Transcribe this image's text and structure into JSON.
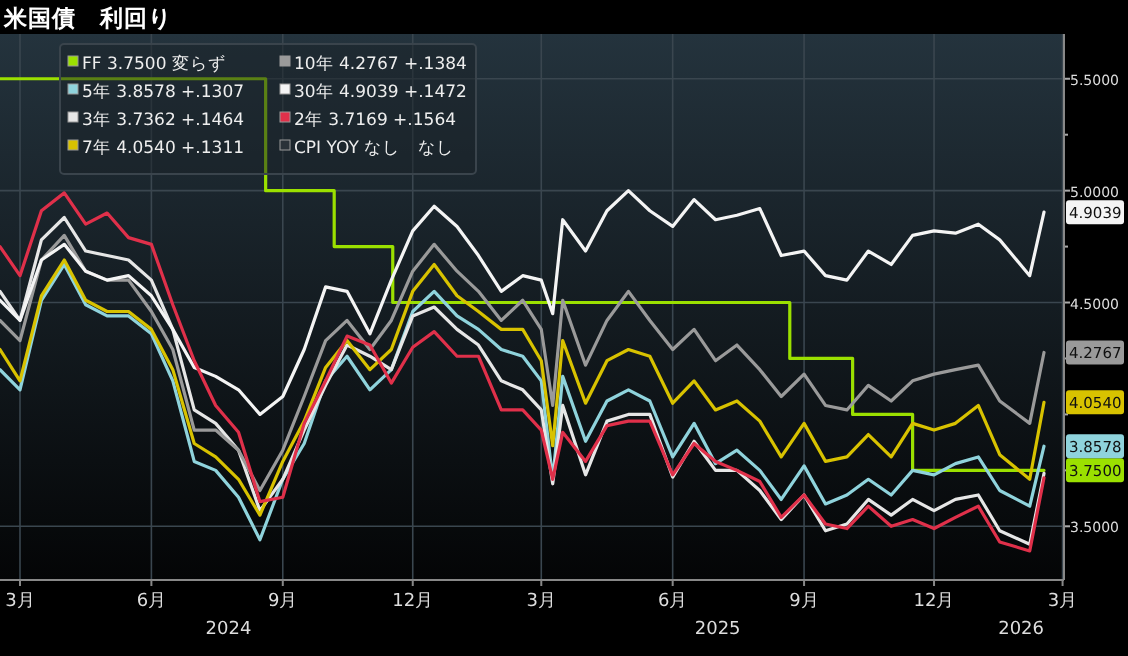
{
  "chart_data": {
    "type": "line",
    "title": "米国債　利回り",
    "x": [
      "2024-02-16",
      "2024-03-01",
      "2024-03-16",
      "2024-04-01",
      "2024-04-16",
      "2024-05-01",
      "2024-05-16",
      "2024-06-01",
      "2024-06-16",
      "2024-07-01",
      "2024-07-16",
      "2024-08-01",
      "2024-08-16",
      "2024-09-01",
      "2024-09-16",
      "2024-10-01",
      "2024-10-16",
      "2024-11-01",
      "2024-11-16",
      "2024-12-01",
      "2024-12-16",
      "2025-01-01",
      "2025-01-16",
      "2025-02-01",
      "2025-02-16",
      "2025-03-01",
      "2025-03-09",
      "2025-03-16",
      "2025-04-01",
      "2025-04-16",
      "2025-05-01",
      "2025-05-16",
      "2025-06-01",
      "2025-06-16",
      "2025-07-01",
      "2025-07-16",
      "2025-08-01",
      "2025-08-16",
      "2025-09-01",
      "2025-09-16",
      "2025-10-01",
      "2025-10-16",
      "2025-11-01",
      "2025-11-16",
      "2025-12-01",
      "2025-12-16",
      "2026-01-01",
      "2026-01-16",
      "2026-02-06",
      "2026-02-16"
    ],
    "series": [
      {
        "name": "FF 3.7500 変らず",
        "color": "#9be000",
        "type": "step",
        "x": [
          "2024-02-16",
          "2024-08-20",
          "2024-10-07",
          "2024-11-17",
          "2025-08-22",
          "2025-10-05",
          "2025-11-16",
          "2026-02-16"
        ],
        "values": [
          5.5,
          5.0,
          4.75,
          4.5,
          4.25,
          4.0,
          3.75,
          3.75
        ],
        "value_labels": [
          null,
          null,
          null,
          null,
          null,
          null,
          null,
          "3.7500"
        ]
      },
      {
        "name": "5年 3.8578 +.1307",
        "color": "#8fd3dc",
        "values": [
          4.2,
          4.11,
          4.51,
          4.67,
          4.49,
          4.44,
          4.44,
          4.36,
          4.15,
          3.79,
          3.75,
          3.63,
          3.44,
          3.71,
          3.87,
          4.15,
          4.26,
          4.11,
          4.2,
          4.46,
          4.55,
          4.44,
          4.38,
          4.29,
          4.26,
          4.15,
          3.71,
          4.17,
          3.88,
          4.06,
          4.11,
          4.06,
          3.81,
          3.96,
          3.78,
          3.84,
          3.75,
          3.62,
          3.77,
          3.6,
          3.64,
          3.71,
          3.64,
          3.75,
          3.73,
          3.78,
          3.81,
          3.66,
          3.59,
          3.8578
        ],
        "value_labels": [
          null,
          null,
          null,
          null,
          null,
          null,
          null,
          null,
          null,
          null,
          null,
          null,
          null,
          null,
          null,
          null,
          null,
          null,
          null,
          null,
          null,
          null,
          null,
          null,
          null,
          null,
          null,
          null,
          null,
          null,
          null,
          null,
          null,
          null,
          null,
          null,
          null,
          null,
          null,
          null,
          null,
          null,
          null,
          null,
          null,
          null,
          null,
          null,
          null,
          "3.8578"
        ]
      },
      {
        "name": "3年 3.7362 +.1464",
        "color": "#e6e6e6",
        "values": [
          4.55,
          4.42,
          4.78,
          4.88,
          4.73,
          4.71,
          4.69,
          4.6,
          4.38,
          4.02,
          3.96,
          3.84,
          3.57,
          3.71,
          3.93,
          4.13,
          4.31,
          4.26,
          4.2,
          4.44,
          4.48,
          4.38,
          4.31,
          4.15,
          4.11,
          4.02,
          3.69,
          4.04,
          3.73,
          3.97,
          4.0,
          4.0,
          3.72,
          3.88,
          3.75,
          3.75,
          3.66,
          3.53,
          3.64,
          3.48,
          3.51,
          3.62,
          3.55,
          3.62,
          3.57,
          3.62,
          3.64,
          3.48,
          3.42,
          3.7362
        ]
      },
      {
        "name": "7年 4.0540 +.1311",
        "color": "#d8c200",
        "values": [
          4.29,
          4.15,
          4.53,
          4.69,
          4.51,
          4.46,
          4.46,
          4.38,
          4.2,
          3.87,
          3.81,
          3.71,
          3.55,
          3.79,
          3.97,
          4.21,
          4.33,
          4.2,
          4.29,
          4.55,
          4.67,
          4.53,
          4.46,
          4.38,
          4.38,
          4.24,
          3.86,
          4.33,
          4.05,
          4.24,
          4.29,
          4.26,
          4.05,
          4.15,
          4.02,
          4.06,
          3.97,
          3.81,
          3.96,
          3.79,
          3.81,
          3.91,
          3.81,
          3.96,
          3.93,
          3.96,
          4.04,
          3.82,
          3.71,
          4.054
        ],
        "value_labels": [
          null,
          null,
          null,
          null,
          null,
          null,
          null,
          null,
          null,
          null,
          null,
          null,
          null,
          null,
          null,
          null,
          null,
          null,
          null,
          null,
          null,
          null,
          null,
          null,
          null,
          null,
          null,
          null,
          null,
          null,
          null,
          null,
          null,
          null,
          null,
          null,
          null,
          null,
          null,
          null,
          null,
          null,
          null,
          null,
          null,
          null,
          null,
          null,
          null,
          "4.0540"
        ]
      },
      {
        "name": "10年 4.2767 +.1384",
        "color": "#9a9a9a",
        "values": [
          4.42,
          4.33,
          4.69,
          4.8,
          4.64,
          4.6,
          4.6,
          4.46,
          4.29,
          3.93,
          3.93,
          3.84,
          3.66,
          3.84,
          4.08,
          4.33,
          4.42,
          4.29,
          4.42,
          4.64,
          4.76,
          4.64,
          4.55,
          4.42,
          4.51,
          4.38,
          4.04,
          4.51,
          4.22,
          4.42,
          4.55,
          4.42,
          4.29,
          4.38,
          4.24,
          4.31,
          4.2,
          4.08,
          4.18,
          4.04,
          4.02,
          4.13,
          4.06,
          4.15,
          4.18,
          4.2,
          4.22,
          4.06,
          3.96,
          4.2767
        ],
        "value_labels": [
          null,
          null,
          null,
          null,
          null,
          null,
          null,
          null,
          null,
          null,
          null,
          null,
          null,
          null,
          null,
          null,
          null,
          null,
          null,
          null,
          null,
          null,
          null,
          null,
          null,
          null,
          null,
          null,
          null,
          null,
          null,
          null,
          null,
          null,
          null,
          null,
          null,
          null,
          null,
          null,
          null,
          null,
          null,
          null,
          null,
          null,
          null,
          null,
          null,
          "4.2767"
        ]
      },
      {
        "name": "30年 4.9039 +.1472",
        "color": "#f4f4f4",
        "values": [
          4.51,
          4.42,
          4.69,
          4.76,
          4.64,
          4.6,
          4.62,
          4.53,
          4.38,
          4.21,
          4.17,
          4.11,
          4.0,
          4.08,
          4.29,
          4.57,
          4.55,
          4.36,
          4.6,
          4.82,
          4.93,
          4.84,
          4.71,
          4.55,
          4.62,
          4.6,
          4.45,
          4.87,
          4.73,
          4.91,
          5.0,
          4.91,
          4.84,
          4.96,
          4.87,
          4.89,
          4.92,
          4.71,
          4.73,
          4.62,
          4.6,
          4.73,
          4.67,
          4.8,
          4.82,
          4.81,
          4.85,
          4.78,
          4.62,
          4.9039
        ],
        "value_labels": [
          null,
          null,
          null,
          null,
          null,
          null,
          null,
          null,
          null,
          null,
          null,
          null,
          null,
          null,
          null,
          null,
          null,
          null,
          null,
          null,
          null,
          null,
          null,
          null,
          null,
          null,
          null,
          null,
          null,
          null,
          null,
          null,
          null,
          null,
          null,
          null,
          null,
          null,
          null,
          null,
          null,
          null,
          null,
          null,
          null,
          null,
          null,
          null,
          null,
          "4.9039"
        ]
      },
      {
        "name": "2年 3.7169 +.1564",
        "color": "#e0304a",
        "values": [
          4.75,
          4.62,
          4.91,
          4.99,
          4.85,
          4.9,
          4.79,
          4.76,
          4.49,
          4.24,
          4.04,
          3.92,
          3.61,
          3.63,
          3.96,
          4.15,
          4.35,
          4.31,
          4.14,
          4.3,
          4.37,
          4.26,
          4.26,
          4.02,
          4.02,
          3.93,
          3.71,
          3.92,
          3.79,
          3.95,
          3.97,
          3.97,
          3.73,
          3.87,
          3.79,
          3.75,
          3.7,
          3.54,
          3.64,
          3.51,
          3.49,
          3.59,
          3.5,
          3.53,
          3.49,
          3.54,
          3.59,
          3.43,
          3.39,
          3.7169
        ]
      },
      {
        "name": "CPI YOY なし　なし",
        "color": "#2a3138",
        "values": [
          null,
          null,
          null,
          null,
          null,
          null,
          null,
          null,
          null,
          null,
          null,
          null,
          null,
          null,
          null,
          null,
          null,
          null,
          null,
          null,
          null,
          null,
          null,
          null,
          null,
          null,
          null,
          null,
          null,
          null,
          null,
          null,
          null,
          null,
          null,
          null,
          null,
          null,
          null,
          null,
          null,
          null,
          null,
          null,
          null,
          null,
          null,
          null,
          null,
          null
        ]
      }
    ],
    "xlim": [
      "2024-02-16",
      "2026-03-02"
    ],
    "xticks": [
      {
        "value": "2024-03-01",
        "label": "3月"
      },
      {
        "value": "2024-06-01",
        "label": "6月"
      },
      {
        "value": "2024-09-01",
        "label": "9月"
      },
      {
        "value": "2024-12-01",
        "label": "12月"
      },
      {
        "value": "2025-03-01",
        "label": "3月"
      },
      {
        "value": "2025-06-01",
        "label": "6月"
      },
      {
        "value": "2025-09-01",
        "label": "9月"
      },
      {
        "value": "2025-12-01",
        "label": "12月"
      },
      {
        "value": "2026-03-01",
        "label": "3月"
      }
    ],
    "ylim": [
      3.26,
      5.7
    ],
    "yticks": [
      {
        "value": 3.5,
        "label": "3.5000"
      },
      {
        "value": 3.75,
        "label": null
      },
      {
        "value": 4.0,
        "label": null
      },
      {
        "value": 4.25,
        "label": null
      },
      {
        "value": 4.5,
        "label": "4.5000"
      },
      {
        "value": 4.75,
        "label": null
      },
      {
        "value": 5.0,
        "label": "5.0000"
      },
      {
        "value": 5.25,
        "label": null
      },
      {
        "value": 5.5,
        "label": "5.5000"
      }
    ],
    "annotations": [
      "2024",
      "2025",
      "2026"
    ],
    "grid": true,
    "legend": "top left"
  }
}
